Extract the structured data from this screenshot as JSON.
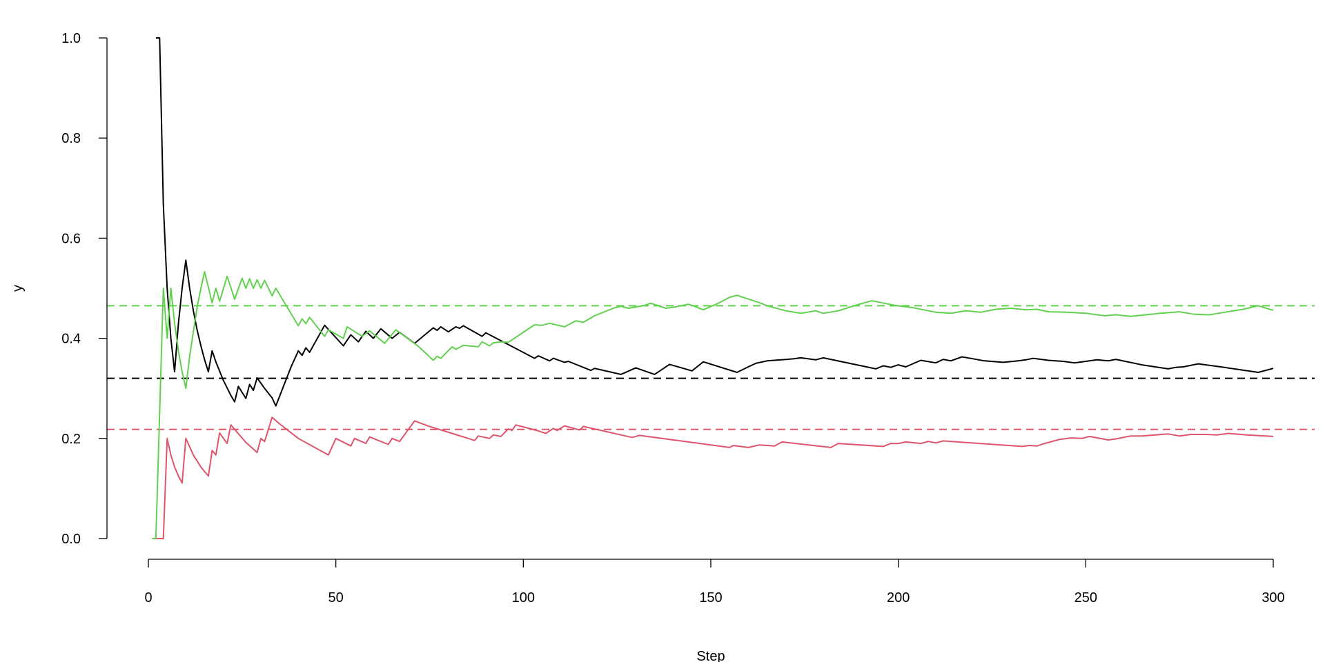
{
  "chart_data": {
    "type": "line",
    "title": "",
    "xlabel": "Step",
    "ylabel": "y",
    "xlim": [
      0,
      300
    ],
    "ylim": [
      0,
      1
    ],
    "x_ticks": [
      "0",
      "50",
      "100",
      "150",
      "200",
      "250",
      "300"
    ],
    "y_ticks": [
      "0.0",
      "0.2",
      "0.4",
      "0.6",
      "0.8",
      "1.0"
    ],
    "grid": false,
    "legend": "none",
    "series": [
      {
        "color": "#000000",
        "points": [
          [
            2,
            1.0
          ],
          [
            3,
            1.0
          ],
          [
            4,
            0.667
          ],
          [
            5,
            0.5
          ],
          [
            6,
            0.4
          ],
          [
            7,
            0.333
          ],
          [
            8,
            0.429
          ],
          [
            9,
            0.5
          ],
          [
            10,
            0.556
          ],
          [
            11,
            0.5
          ],
          [
            12,
            0.455
          ],
          [
            13,
            0.417
          ],
          [
            14,
            0.385
          ],
          [
            15,
            0.357
          ],
          [
            16,
            0.333
          ],
          [
            17,
            0.375
          ],
          [
            18,
            0.353
          ],
          [
            20,
            0.316
          ],
          [
            22,
            0.286
          ],
          [
            23,
            0.273
          ],
          [
            24,
            0.304
          ],
          [
            25,
            0.292
          ],
          [
            26,
            0.28
          ],
          [
            27,
            0.308
          ],
          [
            28,
            0.296
          ],
          [
            29,
            0.321
          ],
          [
            31,
            0.3
          ],
          [
            33,
            0.281
          ],
          [
            34,
            0.265
          ],
          [
            38,
            0.342
          ],
          [
            40,
            0.375
          ],
          [
            41,
            0.366
          ],
          [
            42,
            0.381
          ],
          [
            43,
            0.372
          ],
          [
            47,
            0.426
          ],
          [
            52,
            0.385
          ],
          [
            54,
            0.407
          ],
          [
            56,
            0.393
          ],
          [
            58,
            0.414
          ],
          [
            60,
            0.4
          ],
          [
            62,
            0.419
          ],
          [
            65,
            0.4
          ],
          [
            67,
            0.412
          ],
          [
            71,
            0.39
          ],
          [
            76,
            0.421
          ],
          [
            77,
            0.416
          ],
          [
            78,
            0.423
          ],
          [
            80,
            0.413
          ],
          [
            82,
            0.423
          ],
          [
            83,
            0.42
          ],
          [
            84,
            0.425
          ],
          [
            89,
            0.404
          ],
          [
            90,
            0.411
          ],
          [
            103,
            0.36
          ],
          [
            104,
            0.365
          ],
          [
            107,
            0.355
          ],
          [
            108,
            0.36
          ],
          [
            111,
            0.352
          ],
          [
            112,
            0.354
          ],
          [
            118,
            0.336
          ],
          [
            119,
            0.34
          ],
          [
            126,
            0.328
          ],
          [
            127,
            0.331
          ],
          [
            130,
            0.341
          ],
          [
            135,
            0.328
          ],
          [
            139,
            0.348
          ],
          [
            145,
            0.335
          ],
          [
            148,
            0.353
          ],
          [
            157,
            0.332
          ],
          [
            160,
            0.343
          ],
          [
            162,
            0.35
          ],
          [
            165,
            0.355
          ],
          [
            172,
            0.359
          ],
          [
            174,
            0.361
          ],
          [
            178,
            0.357
          ],
          [
            180,
            0.361
          ],
          [
            194,
            0.339
          ],
          [
            196,
            0.345
          ],
          [
            198,
            0.342
          ],
          [
            200,
            0.347
          ],
          [
            202,
            0.343
          ],
          [
            206,
            0.356
          ],
          [
            210,
            0.351
          ],
          [
            212,
            0.358
          ],
          [
            214,
            0.355
          ],
          [
            217,
            0.363
          ],
          [
            223,
            0.355
          ],
          [
            228,
            0.352
          ],
          [
            232,
            0.355
          ],
          [
            234,
            0.357
          ],
          [
            236,
            0.36
          ],
          [
            240,
            0.356
          ],
          [
            244,
            0.354
          ],
          [
            247,
            0.351
          ],
          [
            253,
            0.357
          ],
          [
            256,
            0.355
          ],
          [
            258,
            0.358
          ],
          [
            265,
            0.347
          ],
          [
            272,
            0.339
          ],
          [
            274,
            0.342
          ],
          [
            276,
            0.343
          ],
          [
            280,
            0.349
          ],
          [
            286,
            0.343
          ],
          [
            296,
            0.332
          ],
          [
            300,
            0.34
          ]
        ]
      },
      {
        "color": "#DF536B",
        "points": [
          [
            1,
            0.0
          ],
          [
            4,
            0.0
          ],
          [
            5,
            0.2
          ],
          [
            6,
            0.167
          ],
          [
            7,
            0.143
          ],
          [
            8,
            0.125
          ],
          [
            9,
            0.111
          ],
          [
            10,
            0.2
          ],
          [
            12,
            0.167
          ],
          [
            14,
            0.143
          ],
          [
            16,
            0.125
          ],
          [
            17,
            0.176
          ],
          [
            18,
            0.167
          ],
          [
            19,
            0.211
          ],
          [
            21,
            0.19
          ],
          [
            22,
            0.227
          ],
          [
            26,
            0.192
          ],
          [
            29,
            0.172
          ],
          [
            30,
            0.2
          ],
          [
            31,
            0.194
          ],
          [
            33,
            0.242
          ],
          [
            35,
            0.229
          ],
          [
            40,
            0.2
          ],
          [
            48,
            0.167
          ],
          [
            50,
            0.2
          ],
          [
            54,
            0.185
          ],
          [
            55,
            0.2
          ],
          [
            58,
            0.19
          ],
          [
            59,
            0.203
          ],
          [
            64,
            0.188
          ],
          [
            65,
            0.2
          ],
          [
            67,
            0.194
          ],
          [
            71,
            0.235
          ],
          [
            75,
            0.224
          ],
          [
            81,
            0.21
          ],
          [
            87,
            0.196
          ],
          [
            88,
            0.205
          ],
          [
            91,
            0.2
          ],
          [
            92,
            0.207
          ],
          [
            94,
            0.204
          ],
          [
            96,
            0.219
          ],
          [
            97,
            0.216
          ],
          [
            98,
            0.227
          ],
          [
            104,
            0.215
          ],
          [
            106,
            0.21
          ],
          [
            108,
            0.22
          ],
          [
            109,
            0.216
          ],
          [
            111,
            0.225
          ],
          [
            115,
            0.217
          ],
          [
            116,
            0.224
          ],
          [
            129,
            0.202
          ],
          [
            131,
            0.206
          ],
          [
            155,
            0.182
          ],
          [
            156,
            0.186
          ],
          [
            160,
            0.182
          ],
          [
            163,
            0.187
          ],
          [
            167,
            0.185
          ],
          [
            169,
            0.193
          ],
          [
            182,
            0.182
          ],
          [
            184,
            0.19
          ],
          [
            196,
            0.184
          ],
          [
            198,
            0.19
          ],
          [
            200,
            0.19
          ],
          [
            202,
            0.193
          ],
          [
            206,
            0.19
          ],
          [
            208,
            0.194
          ],
          [
            210,
            0.191
          ],
          [
            212,
            0.195
          ],
          [
            233,
            0.184
          ],
          [
            235,
            0.186
          ],
          [
            237,
            0.185
          ],
          [
            239,
            0.19
          ],
          [
            243,
            0.198
          ],
          [
            246,
            0.201
          ],
          [
            249,
            0.2
          ],
          [
            251,
            0.204
          ],
          [
            256,
            0.197
          ],
          [
            258,
            0.199
          ],
          [
            262,
            0.205
          ],
          [
            265,
            0.205
          ],
          [
            272,
            0.209
          ],
          [
            275,
            0.205
          ],
          [
            278,
            0.208
          ],
          [
            282,
            0.208
          ],
          [
            285,
            0.207
          ],
          [
            288,
            0.21
          ],
          [
            293,
            0.207
          ],
          [
            300,
            0.204
          ]
        ]
      },
      {
        "color": "#61D04F",
        "points": [
          [
            1,
            0.0
          ],
          [
            2,
            0.0
          ],
          [
            4,
            0.5
          ],
          [
            5,
            0.4
          ],
          [
            6,
            0.5
          ],
          [
            7,
            0.43
          ],
          [
            8,
            0.375
          ],
          [
            9,
            0.333
          ],
          [
            10,
            0.3
          ],
          [
            11,
            0.364
          ],
          [
            13,
            0.462
          ],
          [
            14,
            0.5
          ],
          [
            15,
            0.533
          ],
          [
            17,
            0.471
          ],
          [
            18,
            0.5
          ],
          [
            19,
            0.474
          ],
          [
            21,
            0.524
          ],
          [
            23,
            0.478
          ],
          [
            25,
            0.52
          ],
          [
            26,
            0.5
          ],
          [
            27,
            0.519
          ],
          [
            28,
            0.5
          ],
          [
            29,
            0.517
          ],
          [
            30,
            0.5
          ],
          [
            31,
            0.516
          ],
          [
            33,
            0.485
          ],
          [
            34,
            0.5
          ],
          [
            40,
            0.425
          ],
          [
            41,
            0.439
          ],
          [
            42,
            0.429
          ],
          [
            43,
            0.442
          ],
          [
            47,
            0.404
          ],
          [
            48,
            0.417
          ],
          [
            52,
            0.4
          ],
          [
            53,
            0.423
          ],
          [
            57,
            0.404
          ],
          [
            59,
            0.415
          ],
          [
            63,
            0.39
          ],
          [
            66,
            0.417
          ],
          [
            72,
            0.384
          ],
          [
            76,
            0.356
          ],
          [
            77,
            0.364
          ],
          [
            78,
            0.36
          ],
          [
            81,
            0.383
          ],
          [
            82,
            0.378
          ],
          [
            84,
            0.386
          ],
          [
            88,
            0.383
          ],
          [
            89,
            0.393
          ],
          [
            90,
            0.389
          ],
          [
            91,
            0.385
          ],
          [
            92,
            0.391
          ],
          [
            94,
            0.393
          ],
          [
            96,
            0.392
          ],
          [
            103,
            0.427
          ],
          [
            105,
            0.426
          ],
          [
            107,
            0.43
          ],
          [
            111,
            0.423
          ],
          [
            114,
            0.435
          ],
          [
            116,
            0.432
          ],
          [
            119,
            0.445
          ],
          [
            124,
            0.46
          ],
          [
            126,
            0.464
          ],
          [
            128,
            0.46
          ],
          [
            132,
            0.465
          ],
          [
            134,
            0.47
          ],
          [
            138,
            0.46
          ],
          [
            140,
            0.462
          ],
          [
            144,
            0.468
          ],
          [
            146,
            0.463
          ],
          [
            148,
            0.457
          ],
          [
            152,
            0.47
          ],
          [
            155,
            0.482
          ],
          [
            157,
            0.486
          ],
          [
            163,
            0.471
          ],
          [
            165,
            0.465
          ],
          [
            170,
            0.455
          ],
          [
            174,
            0.45
          ],
          [
            178,
            0.455
          ],
          [
            180,
            0.45
          ],
          [
            184,
            0.455
          ],
          [
            190,
            0.469
          ],
          [
            193,
            0.475
          ],
          [
            195,
            0.472
          ],
          [
            199,
            0.466
          ],
          [
            204,
            0.461
          ],
          [
            210,
            0.452
          ],
          [
            214,
            0.45
          ],
          [
            218,
            0.455
          ],
          [
            222,
            0.452
          ],
          [
            226,
            0.458
          ],
          [
            230,
            0.46
          ],
          [
            234,
            0.457
          ],
          [
            237,
            0.458
          ],
          [
            240,
            0.453
          ],
          [
            245,
            0.452
          ],
          [
            250,
            0.45
          ],
          [
            255,
            0.445
          ],
          [
            258,
            0.447
          ],
          [
            262,
            0.444
          ],
          [
            266,
            0.447
          ],
          [
            270,
            0.45
          ],
          [
            275,
            0.453
          ],
          [
            279,
            0.448
          ],
          [
            283,
            0.447
          ],
          [
            287,
            0.452
          ],
          [
            292,
            0.458
          ],
          [
            296,
            0.465
          ],
          [
            300,
            0.456
          ]
        ]
      }
    ],
    "reference_lines": [
      {
        "y": 0.32,
        "color": "#000000"
      },
      {
        "y": 0.218,
        "color": "#DF536B"
      },
      {
        "y": 0.465,
        "color": "#61D04F"
      }
    ]
  }
}
